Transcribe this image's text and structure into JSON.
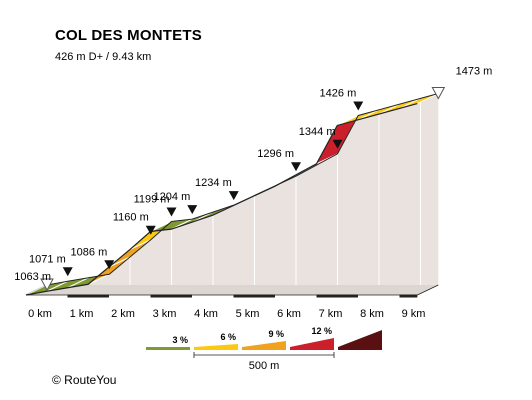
{
  "title": "COL DES MONTETS",
  "subtitle": "426 m D+ / 9.43 km",
  "copyright": "©  RouteYou",
  "chart_data": {
    "type": "area",
    "title": "COL DES MONTETS",
    "subtitle": "426 m D+ / 9.43 km",
    "xlabel": "",
    "ylabel": "",
    "x_unit": "km",
    "y_unit": "m",
    "xlim": [
      0,
      9.43
    ],
    "ylim": [
      1000,
      1500
    ],
    "km_ticks": [
      0,
      1,
      2,
      3,
      4,
      5,
      6,
      7,
      8,
      9
    ],
    "points": [
      {
        "km": 0.0,
        "elev": 1063
      },
      {
        "km": 0.5,
        "elev": 1071
      },
      {
        "km": 1.5,
        "elev": 1086
      },
      {
        "km": 2.5,
        "elev": 1160
      },
      {
        "km": 3.0,
        "elev": 1199
      },
      {
        "km": 3.5,
        "elev": 1204
      },
      {
        "km": 4.5,
        "elev": 1234
      },
      {
        "km": 6.0,
        "elev": 1296
      },
      {
        "km": 7.0,
        "elev": 1344
      },
      {
        "km": 7.5,
        "elev": 1426
      },
      {
        "km": 9.43,
        "elev": 1473
      }
    ],
    "segments": [
      {
        "from": 0.0,
        "to": 0.5,
        "grade": 1.6,
        "color": "#7f9a2e"
      },
      {
        "from": 0.5,
        "to": 1.5,
        "grade": 1.5,
        "color": "#7f9a2e"
      },
      {
        "from": 1.5,
        "to": 2.0,
        "grade": 7.4,
        "color": "#f0a21e"
      },
      {
        "from": 2.0,
        "to": 2.5,
        "grade": 7.4,
        "color": "#f0a21e"
      },
      {
        "from": 2.5,
        "to": 3.0,
        "grade": 7.8,
        "color": "#fcc90f"
      },
      {
        "from": 3.0,
        "to": 3.5,
        "grade": 1.0,
        "color": "#7f9a2e"
      },
      {
        "from": 3.5,
        "to": 4.5,
        "grade": 3.0,
        "color": "#7f9a2e"
      },
      {
        "from": 4.5,
        "to": 5.0,
        "grade": 4.1,
        "color": "#fcc90f"
      },
      {
        "from": 5.0,
        "to": 6.0,
        "grade": 4.1,
        "color": "#f0a21e"
      },
      {
        "from": 6.0,
        "to": 7.0,
        "grade": 4.8,
        "color": "#fcc90f"
      },
      {
        "from": 7.0,
        "to": 7.5,
        "grade": 16.4,
        "color": "#cc1f2c"
      },
      {
        "from": 7.5,
        "to": 9.43,
        "grade": 2.4,
        "color": "#fcc90f"
      }
    ],
    "elevation_labels": [
      {
        "km": 0.0,
        "label": "1063 m",
        "marker": "start"
      },
      {
        "km": 0.5,
        "label": "1071 m",
        "marker": "down"
      },
      {
        "km": 1.5,
        "label": "1086 m",
        "marker": "down"
      },
      {
        "km": 2.5,
        "label": "1160 m",
        "marker": "down"
      },
      {
        "km": 3.0,
        "label": "1199 m",
        "marker": "down"
      },
      {
        "km": 3.5,
        "label": "1204 m",
        "marker": "down"
      },
      {
        "km": 4.5,
        "label": "1234 m",
        "marker": "down"
      },
      {
        "km": 6.0,
        "label": "1296 m",
        "marker": "down"
      },
      {
        "km": 7.0,
        "label": "1344 m",
        "marker": "down"
      },
      {
        "km": 7.5,
        "label": "1426 m",
        "marker": "down"
      },
      {
        "km": 9.43,
        "label": "1473 m",
        "marker": "end"
      }
    ],
    "legend": {
      "items": [
        {
          "label": "3 %",
          "color": "#7f9a2e",
          "shape": "line"
        },
        {
          "label": "6 %",
          "color": "#fcc90f",
          "shape": "wedge"
        },
        {
          "label": "9 %",
          "color": "#f0a21e",
          "shape": "wedge"
        },
        {
          "label": "12 %",
          "color": "#cc1f2c",
          "shape": "wedge"
        },
        {
          "label": "",
          "color": "#5a1010",
          "shape": "wedge"
        }
      ],
      "scale_label": "500 m",
      "placement": "bottom-center"
    }
  }
}
